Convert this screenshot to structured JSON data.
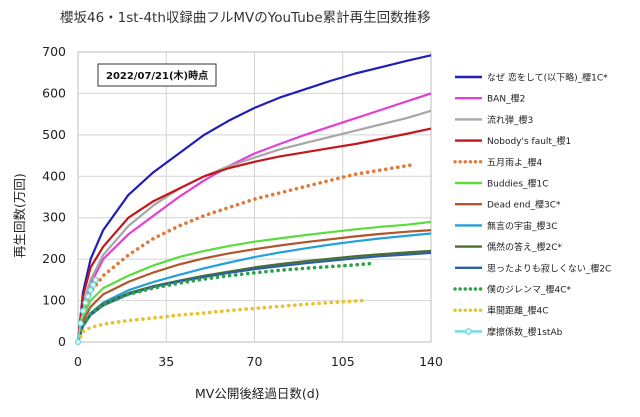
{
  "chart_data": {
    "type": "line",
    "title": "櫻坂46・1st-4th収録曲フルMVのYouTube累計再生回数推移",
    "annotation": "2022/07/21(木)時点",
    "xlabel": "MV公開後経過日数(d)",
    "ylabel": "再生回数(万回)",
    "xlim": [
      0,
      140
    ],
    "ylim": [
      0,
      700
    ],
    "xticks": [
      0,
      35,
      70,
      105,
      140
    ],
    "yticks": [
      0,
      100,
      200,
      300,
      400,
      500,
      600,
      700
    ],
    "grid": true,
    "legend_position": "right",
    "series": [
      {
        "name": "なぜ 恋をして(以下略)_櫻1C*",
        "color": "#1f1fb8",
        "style": "solid",
        "x": [
          0,
          2,
          5,
          10,
          20,
          30,
          40,
          50,
          60,
          70,
          80,
          90,
          100,
          110,
          120,
          130,
          140
        ],
        "values": [
          0,
          120,
          200,
          270,
          355,
          410,
          455,
          500,
          535,
          565,
          590,
          610,
          630,
          648,
          663,
          678,
          692
        ]
      },
      {
        "name": "BAN_櫻2",
        "color": "#e23fd3",
        "style": "solid",
        "x": [
          0,
          2,
          5,
          10,
          20,
          30,
          40,
          50,
          60,
          70,
          80,
          90,
          100,
          110,
          120,
          130,
          140
        ],
        "values": [
          0,
          80,
          140,
          200,
          260,
          305,
          350,
          390,
          425,
          455,
          478,
          500,
          520,
          540,
          560,
          580,
          600
        ]
      },
      {
        "name": "流れ弾_櫻3",
        "color": "#a6a6a6",
        "style": "solid",
        "x": [
          0,
          2,
          5,
          10,
          20,
          30,
          40,
          50,
          60,
          70,
          80,
          90,
          100,
          110,
          120,
          130,
          140
        ],
        "values": [
          0,
          90,
          150,
          210,
          280,
          330,
          370,
          400,
          425,
          445,
          465,
          480,
          495,
          510,
          525,
          540,
          558
        ]
      },
      {
        "name": "Nobody's fault_櫻1",
        "color": "#c4161c",
        "style": "solid",
        "x": [
          0,
          2,
          5,
          10,
          20,
          30,
          40,
          50,
          60,
          70,
          80,
          90,
          100,
          110,
          120,
          130,
          140
        ],
        "values": [
          0,
          110,
          180,
          230,
          300,
          340,
          370,
          400,
          420,
          435,
          448,
          458,
          468,
          478,
          490,
          502,
          515
        ]
      },
      {
        "name": "五月雨よ_櫻4",
        "color": "#e07a36",
        "style": "dotted",
        "x": [
          0,
          2,
          5,
          10,
          20,
          30,
          40,
          50,
          60,
          70,
          80,
          90,
          100,
          110,
          120,
          130,
          133
        ],
        "values": [
          0,
          70,
          120,
          160,
          210,
          250,
          280,
          305,
          325,
          345,
          360,
          375,
          390,
          405,
          415,
          425,
          428
        ]
      },
      {
        "name": "Buddies_櫻1C",
        "color": "#5cdc3c",
        "style": "solid",
        "x": [
          0,
          2,
          5,
          10,
          20,
          30,
          40,
          50,
          60,
          70,
          80,
          90,
          100,
          110,
          120,
          130,
          140
        ],
        "values": [
          0,
          60,
          100,
          130,
          160,
          185,
          205,
          220,
          232,
          242,
          250,
          258,
          265,
          272,
          278,
          283,
          290
        ]
      },
      {
        "name": "Dead end_櫻3C*",
        "color": "#b0552c",
        "style": "solid",
        "x": [
          0,
          2,
          5,
          10,
          20,
          30,
          40,
          50,
          60,
          70,
          80,
          90,
          100,
          110,
          120,
          130,
          140
        ],
        "values": [
          0,
          50,
          85,
          115,
          145,
          168,
          187,
          202,
          214,
          224,
          233,
          241,
          248,
          255,
          261,
          266,
          270
        ]
      },
      {
        "name": "無言の宇宙_櫻3C",
        "color": "#25a0de",
        "style": "solid",
        "x": [
          0,
          2,
          5,
          10,
          20,
          30,
          40,
          50,
          60,
          70,
          80,
          90,
          100,
          110,
          120,
          130,
          140
        ],
        "values": [
          0,
          40,
          70,
          95,
          125,
          145,
          162,
          178,
          192,
          205,
          216,
          226,
          235,
          243,
          250,
          256,
          262
        ]
      },
      {
        "name": "偶然の答え_櫻2C*",
        "color": "#4c6e2c",
        "style": "solid",
        "x": [
          0,
          2,
          5,
          10,
          20,
          30,
          40,
          50,
          60,
          70,
          80,
          90,
          100,
          110,
          120,
          130,
          140
        ],
        "values": [
          0,
          40,
          68,
          92,
          118,
          135,
          148,
          160,
          170,
          180,
          188,
          195,
          201,
          207,
          212,
          216,
          220
        ]
      },
      {
        "name": "思ったよりも寂しくない_櫻2C",
        "color": "#2c5fa0",
        "style": "solid",
        "x": [
          0,
          2,
          5,
          10,
          20,
          30,
          40,
          50,
          60,
          70,
          80,
          90,
          100,
          110,
          120,
          130,
          140
        ],
        "values": [
          0,
          38,
          65,
          88,
          115,
          133,
          146,
          157,
          167,
          176,
          183,
          190,
          196,
          202,
          207,
          211,
          215
        ]
      },
      {
        "name": "僕のジレンマ_櫻4C*",
        "color": "#2ea04c",
        "style": "dotted",
        "x": [
          0,
          2,
          5,
          10,
          20,
          30,
          40,
          50,
          60,
          70,
          80,
          90,
          100,
          110,
          117
        ],
        "values": [
          0,
          40,
          68,
          90,
          115,
          130,
          142,
          152,
          160,
          167,
          173,
          178,
          182,
          186,
          190
        ]
      },
      {
        "name": "車間距離_櫻4C",
        "color": "#e8c232",
        "style": "dotted",
        "x": [
          0,
          2,
          5,
          10,
          20,
          30,
          40,
          50,
          60,
          70,
          80,
          90,
          100,
          113
        ],
        "values": [
          0,
          25,
          35,
          43,
          52,
          58,
          65,
          70,
          76,
          81,
          86,
          91,
          95,
          100
        ]
      },
      {
        "name": "摩擦係数_櫻1stAb",
        "color": "#66e0e0",
        "style": "marker",
        "x": [
          0,
          1,
          2,
          3,
          4,
          5,
          6,
          7
        ],
        "values": [
          0,
          45,
          75,
          95,
          110,
          125,
          138,
          150
        ]
      }
    ]
  }
}
